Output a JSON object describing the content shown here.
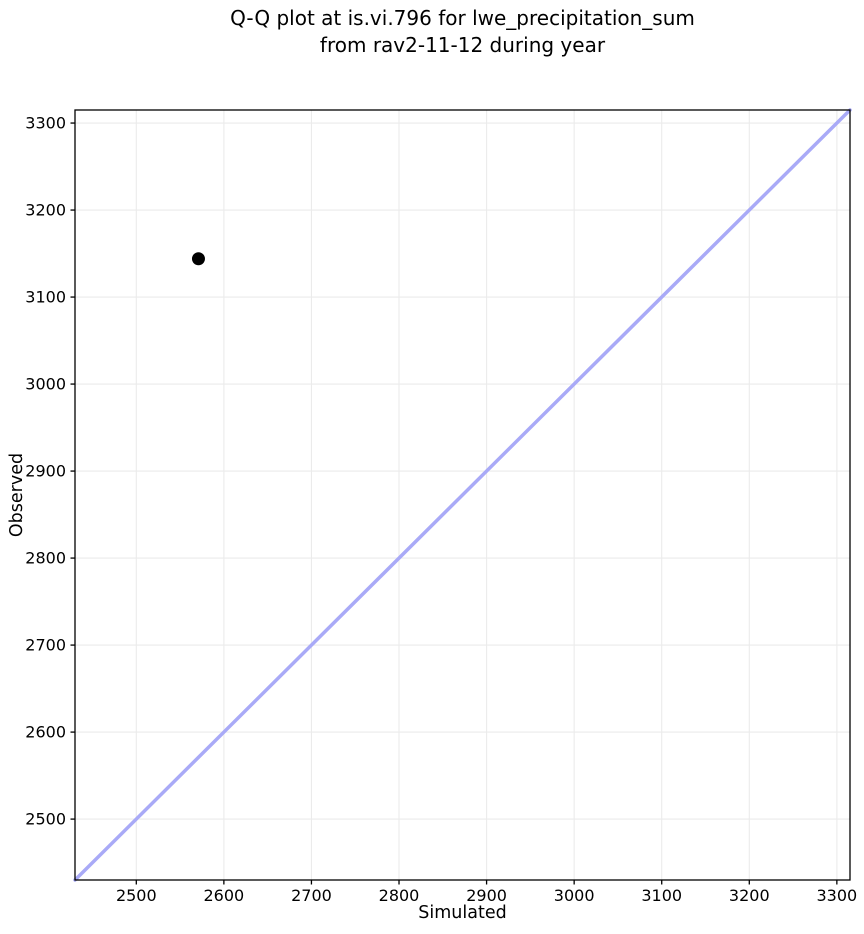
{
  "figure": {
    "background": "#ffffff"
  },
  "chart_data": {
    "type": "scatter",
    "title_lines": [
      "Q-Q plot at is.vi.796 for lwe_precipitation_sum",
      "from rav2-11-12 during year"
    ],
    "xlabel": "Simulated",
    "ylabel": "Observed",
    "xlim": [
      2430,
      3315
    ],
    "ylim": [
      2430,
      3315
    ],
    "xticks": [
      2500,
      2600,
      2700,
      2800,
      2900,
      3000,
      3100,
      3200,
      3300
    ],
    "yticks": [
      2500,
      2600,
      2700,
      2800,
      2900,
      3000,
      3100,
      3200,
      3300
    ],
    "grid": true,
    "grid_color": "#ebebeb",
    "spine_color": "#000000",
    "tick_color": "#000000",
    "tick_label_color": "#000000",
    "points": [
      {
        "x": 2571,
        "y": 3144
      }
    ],
    "point_color": "#000000",
    "point_radius": 6.5,
    "reference_line": {
      "from": [
        2430,
        2430
      ],
      "to": [
        3315,
        3315
      ],
      "color": "#a9aaf7",
      "width": 3.5
    }
  }
}
